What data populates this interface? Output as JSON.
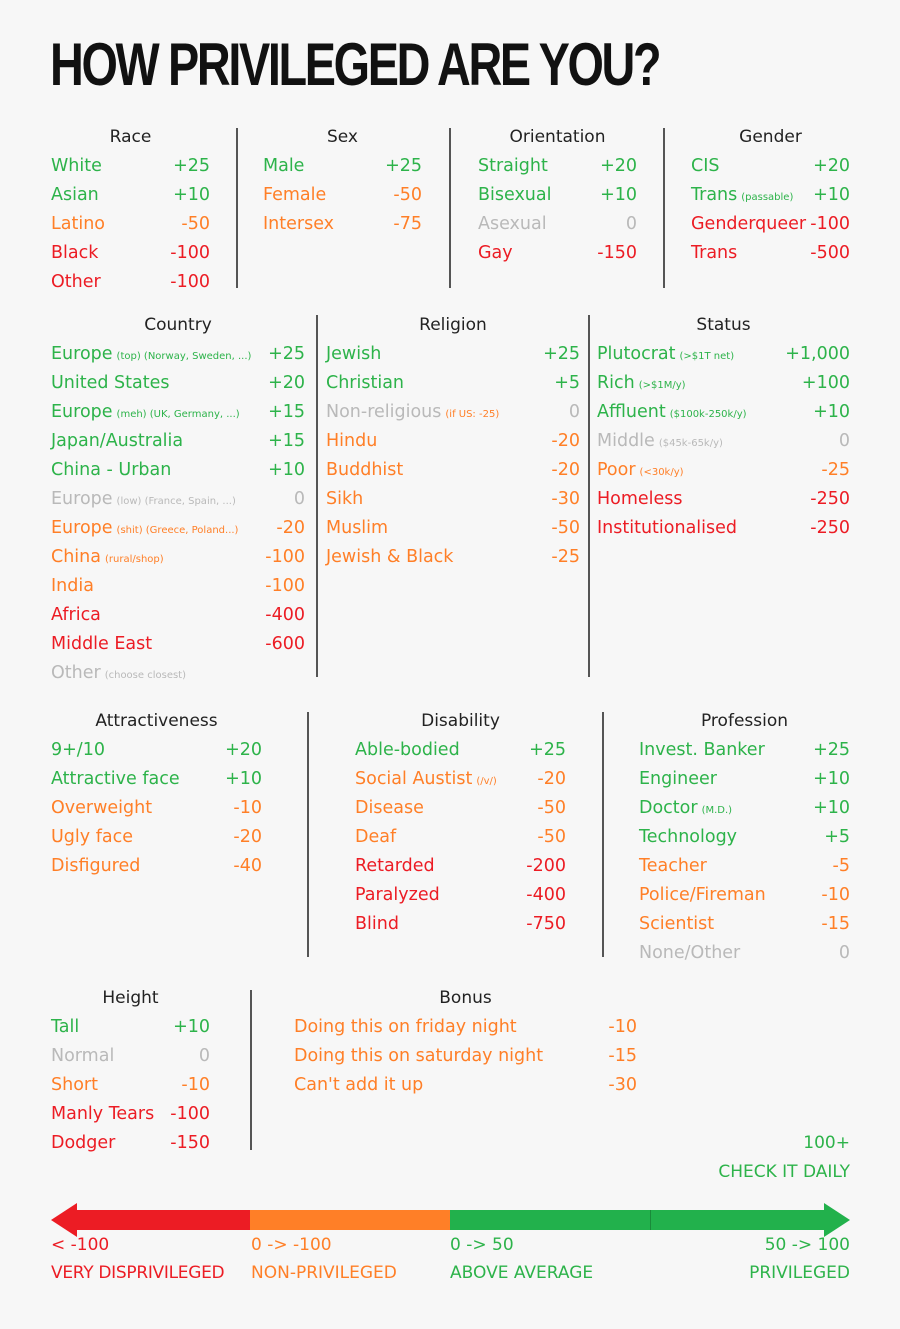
{
  "title": "HOW PRIVILEGED ARE YOU?",
  "colors": {
    "green": "#2db34a",
    "orange": "#ff7f27",
    "red": "#ec1c24",
    "neutral": "#b9b9b9"
  },
  "sections": [
    {
      "id": "race",
      "title": "Race",
      "rows": [
        {
          "label": "White",
          "value": "+25",
          "tone": "g"
        },
        {
          "label": "Asian",
          "value": "+10",
          "tone": "g"
        },
        {
          "label": "Latino",
          "value": "-50",
          "tone": "o"
        },
        {
          "label": "Black",
          "value": "-100",
          "tone": "r"
        },
        {
          "label": "Other",
          "value": "-100",
          "tone": "r"
        }
      ]
    },
    {
      "id": "sex",
      "title": "Sex",
      "rows": [
        {
          "label": "Male",
          "value": "+25",
          "tone": "g"
        },
        {
          "label": "Female",
          "value": "-50",
          "tone": "o"
        },
        {
          "label": "Intersex",
          "value": "-75",
          "tone": "o"
        }
      ]
    },
    {
      "id": "orientation",
      "title": "Orientation",
      "rows": [
        {
          "label": "Straight",
          "value": "+20",
          "tone": "g"
        },
        {
          "label": "Bisexual",
          "value": "+10",
          "tone": "g"
        },
        {
          "label": "Asexual",
          "value": "0",
          "tone": "n"
        },
        {
          "label": "Gay",
          "value": "-150",
          "tone": "r"
        }
      ]
    },
    {
      "id": "gender",
      "title": "Gender",
      "rows": [
        {
          "label": "CIS",
          "value": "+20",
          "tone": "g"
        },
        {
          "label": "Trans",
          "note": "(passable)",
          "value": "+10",
          "tone": "g"
        },
        {
          "label": "Genderqueer",
          "value": "-100",
          "tone": "r"
        },
        {
          "label": "Trans",
          "value": "-500",
          "tone": "r"
        }
      ]
    },
    {
      "id": "country",
      "title": "Country",
      "rows": [
        {
          "label": "Europe",
          "note": "(top) (Norway, Sweden, ...)",
          "value": "+25",
          "tone": "g"
        },
        {
          "label": "United States",
          "value": "+20",
          "tone": "g"
        },
        {
          "label": "Europe",
          "note": "(meh) (UK, Germany, ...)",
          "value": "+15",
          "tone": "g"
        },
        {
          "label": "Japan/Australia",
          "value": "+15",
          "tone": "g"
        },
        {
          "label": "China - Urban",
          "value": "+10",
          "tone": "g"
        },
        {
          "label": "Europe",
          "note": "(low) (France, Spain, ...)",
          "value": "0",
          "tone": "n"
        },
        {
          "label": "Europe",
          "note": "(shit) (Greece, Poland...)",
          "value": "-20",
          "tone": "o"
        },
        {
          "label": "China",
          "note": "(rural/shop)",
          "value": "-100",
          "tone": "o"
        },
        {
          "label": "India",
          "value": "-100",
          "tone": "o"
        },
        {
          "label": "Africa",
          "value": "-400",
          "tone": "r"
        },
        {
          "label": "Middle East",
          "value": "-600",
          "tone": "r"
        },
        {
          "label": "Other",
          "note": "(choose closest)",
          "value": "",
          "tone": "n"
        }
      ]
    },
    {
      "id": "religion",
      "title": "Religion",
      "rows": [
        {
          "label": "Jewish",
          "value": "+25",
          "tone": "g"
        },
        {
          "label": "Christian",
          "value": "+5",
          "tone": "g"
        },
        {
          "label": "Non-religious",
          "note": "(if US: -25)",
          "noteTone": "o",
          "value": "0",
          "tone": "n"
        },
        {
          "label": "Hindu",
          "value": "-20",
          "tone": "o"
        },
        {
          "label": "Buddhist",
          "value": "-20",
          "tone": "o"
        },
        {
          "label": "Sikh",
          "value": "-30",
          "tone": "o"
        },
        {
          "label": "Muslim",
          "value": "-50",
          "tone": "o"
        },
        {
          "label": "Jewish & Black",
          "value": "-25",
          "tone": "o"
        }
      ]
    },
    {
      "id": "status",
      "title": "Status",
      "rows": [
        {
          "label": "Plutocrat",
          "note": "(>$1T net)",
          "value": "+1,000",
          "tone": "g"
        },
        {
          "label": "Rich",
          "note": "(>$1M/y)",
          "value": "+100",
          "tone": "g"
        },
        {
          "label": "Affluent",
          "note": "($100k-250k/y)",
          "value": "+10",
          "tone": "g"
        },
        {
          "label": "Middle",
          "note": "($45k-65k/y)",
          "value": "0",
          "tone": "n"
        },
        {
          "label": "Poor",
          "note": "(<30k/y)",
          "value": "-25",
          "tone": "o"
        },
        {
          "label": "Homeless",
          "value": "-250",
          "tone": "r"
        },
        {
          "label": "Institutionalised",
          "value": "-250",
          "tone": "r"
        }
      ]
    },
    {
      "id": "attractiveness",
      "title": "Attractiveness",
      "rows": [
        {
          "label": "9+/10",
          "value": "+20",
          "tone": "g"
        },
        {
          "label": "Attractive face",
          "value": "+10",
          "tone": "g"
        },
        {
          "label": "Overweight",
          "value": "-10",
          "tone": "o"
        },
        {
          "label": "Ugly face",
          "value": "-20",
          "tone": "o"
        },
        {
          "label": "Disfigured",
          "value": "-40",
          "tone": "o"
        }
      ]
    },
    {
      "id": "disability",
      "title": "Disability",
      "rows": [
        {
          "label": "Able-bodied",
          "value": "+25",
          "tone": "g"
        },
        {
          "label": "Social Austist",
          "note": "(/v/)",
          "value": "-20",
          "tone": "o"
        },
        {
          "label": "Disease",
          "value": "-50",
          "tone": "o"
        },
        {
          "label": "Deaf",
          "value": "-50",
          "tone": "o"
        },
        {
          "label": "Retarded",
          "value": "-200",
          "tone": "r"
        },
        {
          "label": "Paralyzed",
          "value": "-400",
          "tone": "r"
        },
        {
          "label": "Blind",
          "value": "-750",
          "tone": "r"
        }
      ]
    },
    {
      "id": "profession",
      "title": "Profession",
      "rows": [
        {
          "label": "Invest. Banker",
          "value": "+25",
          "tone": "g"
        },
        {
          "label": "Engineer",
          "value": "+10",
          "tone": "g"
        },
        {
          "label": "Doctor",
          "note": "(M.D.)",
          "value": "+10",
          "tone": "g"
        },
        {
          "label": "Technology",
          "value": "+5",
          "tone": "g"
        },
        {
          "label": "Teacher",
          "value": "-5",
          "tone": "o"
        },
        {
          "label": "Police/Fireman",
          "value": "-10",
          "tone": "o"
        },
        {
          "label": "Scientist",
          "value": "-15",
          "tone": "o"
        },
        {
          "label": "None/Other",
          "value": "0",
          "tone": "n"
        }
      ]
    },
    {
      "id": "height",
      "title": "Height",
      "rows": [
        {
          "label": "Tall",
          "value": "+10",
          "tone": "g"
        },
        {
          "label": "Normal",
          "value": "0",
          "tone": "n"
        },
        {
          "label": "Short",
          "value": "-10",
          "tone": "o"
        },
        {
          "label": "Manly Tears",
          "value": "-100",
          "tone": "r"
        },
        {
          "label": "Dodger",
          "value": "-150",
          "tone": "r"
        }
      ]
    },
    {
      "id": "bonus",
      "title": "Bonus",
      "rows": [
        {
          "label": "Doing this on friday night",
          "value": "-10",
          "tone": "o"
        },
        {
          "label": "Doing this on saturday night",
          "value": "-15",
          "tone": "o"
        },
        {
          "label": "Can't add it up",
          "value": "-30",
          "tone": "o"
        }
      ]
    }
  ],
  "bonus_extra": {
    "score": "100+",
    "tagline": "CHECK IT DAILY"
  },
  "scale": [
    {
      "range": "< -100",
      "label": "VERY DISPRIVILEGED",
      "tone": "r"
    },
    {
      "range": "0 -> -100",
      "label": "NON-PRIVILEGED",
      "tone": "o"
    },
    {
      "range": "0 -> 50",
      "label": "ABOVE AVERAGE",
      "tone": "g"
    },
    {
      "range": "50 -> 100",
      "label": "PRIVILEGED",
      "tone": "g"
    }
  ]
}
